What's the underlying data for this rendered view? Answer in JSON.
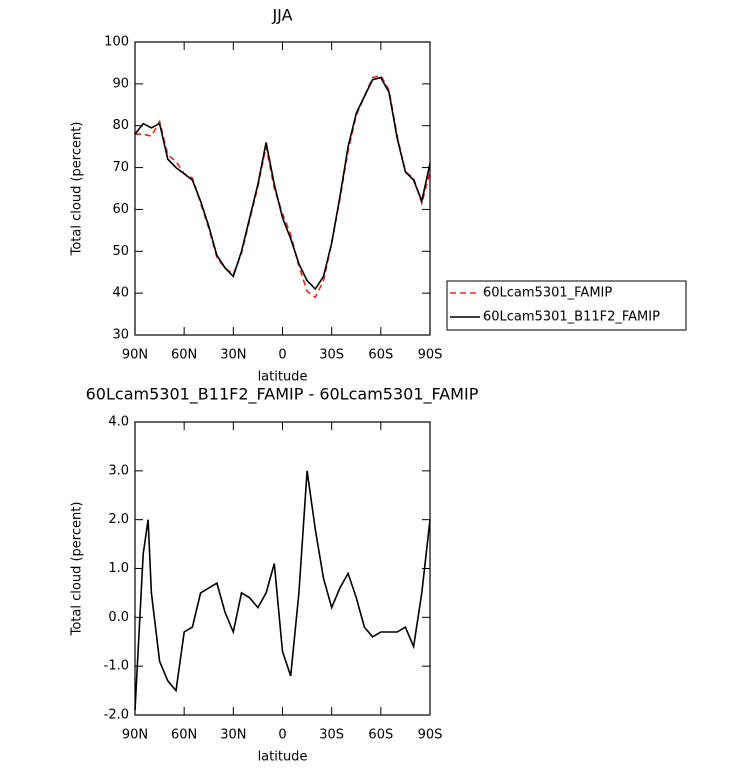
{
  "chart_data": [
    {
      "type": "line",
      "title": "JJA",
      "xlabel": "latitude",
      "ylabel": "Total cloud (percent)",
      "x": [
        90,
        85,
        80,
        75,
        70,
        65,
        60,
        55,
        50,
        45,
        40,
        35,
        30,
        25,
        20,
        15,
        10,
        5,
        0,
        -5,
        -10,
        -15,
        -20,
        -25,
        -30,
        -35,
        -40,
        -45,
        -50,
        -55,
        -60,
        -65,
        -70,
        -75,
        -80,
        -85,
        -90
      ],
      "xlim": [
        90,
        -90
      ],
      "xticks": [
        {
          "value": 90,
          "label": "90N"
        },
        {
          "value": 60,
          "label": "60N"
        },
        {
          "value": 30,
          "label": "30N"
        },
        0,
        {
          "value": -30,
          "label": "30S"
        },
        {
          "value": -60,
          "label": "60S"
        },
        {
          "value": -90,
          "label": "90S"
        }
      ],
      "ylim": [
        30,
        100
      ],
      "yticks": [
        30,
        40,
        50,
        60,
        70,
        80,
        90,
        100
      ],
      "series": [
        {
          "name": "60Lcam5301_FAMIP",
          "color": "#e8271e",
          "line_style": "dashed",
          "values": [
            78,
            78,
            77.5,
            81,
            73,
            71.5,
            68.5,
            67.5,
            61.5,
            55.5,
            48.5,
            46,
            44.5,
            49.5,
            57.5,
            65.5,
            75,
            65,
            59,
            54,
            46.5,
            40.5,
            39,
            43,
            52,
            62.5,
            74,
            82.5,
            87,
            91.5,
            92,
            88.5,
            77.5,
            69,
            67.5,
            61.5,
            69
          ]
        },
        {
          "name": "60Lcam5301_B11F2_FAMIP",
          "color": "#000000",
          "line_style": "solid",
          "values": [
            78,
            80.5,
            79.5,
            80.5,
            72,
            70,
            68.5,
            67,
            62,
            56,
            49,
            46,
            44,
            50,
            58,
            66,
            76,
            66,
            58,
            53,
            47,
            43,
            41,
            44,
            52,
            63,
            75,
            83,
            87,
            91,
            91.5,
            88,
            77,
            69,
            67,
            62,
            71
          ]
        }
      ]
    },
    {
      "type": "line",
      "title": "60Lcam5301_B11F2_FAMIP - 60Lcam5301_FAMIP",
      "xlabel": "latitude",
      "ylabel": "Total cloud (percent)",
      "x": [
        90,
        85,
        82,
        80,
        75,
        70,
        65,
        60,
        55,
        50,
        45,
        40,
        35,
        30,
        25,
        20,
        15,
        10,
        5,
        0,
        -5,
        -10,
        -15,
        -20,
        -25,
        -30,
        -35,
        -40,
        -45,
        -50,
        -55,
        -60,
        -65,
        -70,
        -75,
        -80,
        -85,
        -90
      ],
      "xlim": [
        90,
        -90
      ],
      "xticks": [
        {
          "value": 90,
          "label": "90N"
        },
        {
          "value": 60,
          "label": "60N"
        },
        {
          "value": 30,
          "label": "30N"
        },
        0,
        {
          "value": -30,
          "label": "30S"
        },
        {
          "value": -60,
          "label": "60S"
        },
        {
          "value": -90,
          "label": "90S"
        }
      ],
      "ylim": [
        -2,
        4
      ],
      "yticks": [
        {
          "value": -2,
          "label": "-2.0"
        },
        {
          "value": -1,
          "label": "-1.0"
        },
        {
          "value": 0,
          "label": "0.0"
        },
        {
          "value": 1,
          "label": "1.0"
        },
        {
          "value": 2,
          "label": "2.0"
        },
        {
          "value": 3,
          "label": "3.0"
        },
        {
          "value": 4,
          "label": "4.0"
        }
      ],
      "color": "#000000",
      "values": [
        -1.9,
        1.3,
        2.0,
        0.5,
        -0.9,
        -1.3,
        -1.5,
        -0.3,
        -0.2,
        0.5,
        0.6,
        0.7,
        0.1,
        -0.3,
        0.5,
        0.4,
        0.2,
        0.5,
        1.1,
        -0.7,
        -1.2,
        0.5,
        3.0,
        1.8,
        0.8,
        0.2,
        0.6,
        0.9,
        0.4,
        -0.2,
        -0.4,
        -0.3,
        -0.3,
        -0.3,
        -0.2,
        -0.6,
        0.5,
        2.0
      ]
    }
  ]
}
